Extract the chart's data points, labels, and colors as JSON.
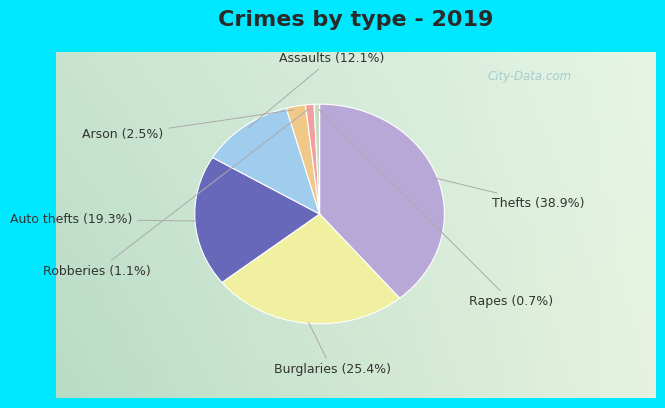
{
  "title": "Crimes by type - 2019",
  "slices": [
    {
      "label": "Thefts (38.9%)",
      "value": 38.9,
      "color": "#b8a8d8"
    },
    {
      "label": "Burglaries (25.4%)",
      "value": 25.4,
      "color": "#f0f0a0"
    },
    {
      "label": "Auto thefts (19.3%)",
      "value": 19.3,
      "color": "#6868bb"
    },
    {
      "label": "Assaults (12.1%)",
      "value": 12.1,
      "color": "#a0ccee"
    },
    {
      "label": "Arson (2.5%)",
      "value": 2.5,
      "color": "#f0c888"
    },
    {
      "label": "Robberies (1.1%)",
      "value": 1.1,
      "color": "#f0a0a0"
    },
    {
      "label": "Rapes (0.7%)",
      "value": 0.7,
      "color": "#c8ddc0"
    }
  ],
  "cyan_bar_color": "#00e8ff",
  "bg_color_top_left": "#c8e8d8",
  "bg_color_bottom_right": "#d8ecd8",
  "title_fontsize": 16,
  "label_fontsize": 9,
  "watermark": "City-Data.com",
  "label_positions": [
    [
      1.38,
      0.1,
      "left",
      "Thefts (38.9%)"
    ],
    [
      0.1,
      -1.42,
      "center",
      "Burglaries (25.4%)"
    ],
    [
      -1.5,
      -0.05,
      "right",
      "Auto thefts (19.3%)"
    ],
    [
      0.1,
      1.42,
      "center",
      "Assaults (12.1%)"
    ],
    [
      -1.25,
      0.72,
      "right",
      "Arson (2.5%)"
    ],
    [
      -1.35,
      -0.52,
      "right",
      "Robberies (1.1%)"
    ],
    [
      1.2,
      -0.8,
      "left",
      "Rapes (0.7%)"
    ]
  ]
}
